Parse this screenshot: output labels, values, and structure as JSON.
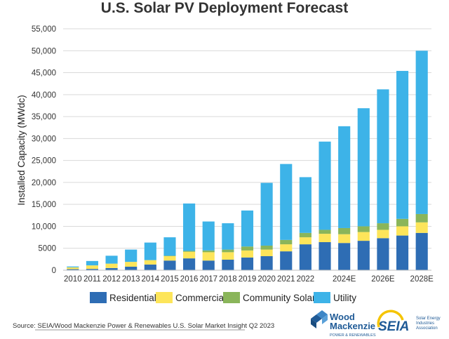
{
  "chart_data": {
    "type": "bar",
    "stacked": true,
    "title": "U.S. Solar PV Deployment Forecast",
    "xlabel": "",
    "ylabel": "Installed Capacity (MWdc)",
    "ylim": [
      0,
      55000
    ],
    "yticks": [
      0,
      5000,
      10000,
      15000,
      20000,
      25000,
      30000,
      35000,
      40000,
      45000,
      50000,
      55000
    ],
    "ytick_labels": [
      "0",
      "5000",
      "10,000",
      "15,000",
      "20,000",
      "25,000",
      "30,000",
      "35,000",
      "40,000",
      "45,000",
      "50,000",
      "55,000"
    ],
    "grid": true,
    "legend_position": "bottom",
    "categories": [
      "2010",
      "2011",
      "2012",
      "2013",
      "2014",
      "2015",
      "2016",
      "2017",
      "2018",
      "2019",
      "2020",
      "2021",
      "2022",
      "2023E",
      "2024E",
      "2025E",
      "2026E",
      "2027E",
      "2028E"
    ],
    "category_labels": [
      "2010",
      "2011",
      "2012",
      "2013",
      "2014",
      "2015",
      "2016",
      "2017",
      "2018",
      "2019",
      "2020",
      "2021",
      "2022",
      "",
      "2024E",
      "",
      "2026E",
      "",
      "2028E"
    ],
    "series": [
      {
        "name": "Residential",
        "color": "#2e6db4",
        "values": [
          250,
          300,
          500,
          800,
          1300,
          2200,
          2700,
          2200,
          2400,
          2900,
          3200,
          4300,
          5900,
          6400,
          6200,
          6700,
          7300,
          7900,
          8500
        ]
      },
      {
        "name": "Commercial",
        "color": "#fde55a",
        "values": [
          400,
          800,
          1000,
          1100,
          1000,
          1000,
          1500,
          1900,
          1700,
          1600,
          1500,
          1600,
          1600,
          1900,
          2000,
          2000,
          1900,
          2100,
          2400
        ]
      },
      {
        "name": "Community Solar",
        "color": "#8ab55a",
        "values": [
          0,
          0,
          0,
          0,
          0,
          100,
          200,
          400,
          600,
          900,
          900,
          1000,
          1000,
          900,
          1400,
          1300,
          1500,
          1700,
          1900
        ]
      },
      {
        "name": "Utility",
        "color": "#3db3e8",
        "values": [
          200,
          1000,
          1800,
          2800,
          4000,
          4200,
          10800,
          6600,
          6000,
          8200,
          14300,
          17300,
          12700,
          20100,
          23200,
          26900,
          30500,
          33700,
          37200
        ]
      }
    ]
  },
  "footer": {
    "source": "Source: SEIA/Wood Mackenzie Power & Renewables U.S. Solar Market Insight Q2 2023",
    "logo_woodmac_line1": "Wood",
    "logo_woodmac_line2": "Mackenzie",
    "logo_woodmac_tagline": "POWER & RENEWABLES",
    "logo_seia_name": "SEIA",
    "logo_seia_line1": "Solar Energy",
    "logo_seia_line2": "Industries",
    "logo_seia_line3": "Association"
  }
}
